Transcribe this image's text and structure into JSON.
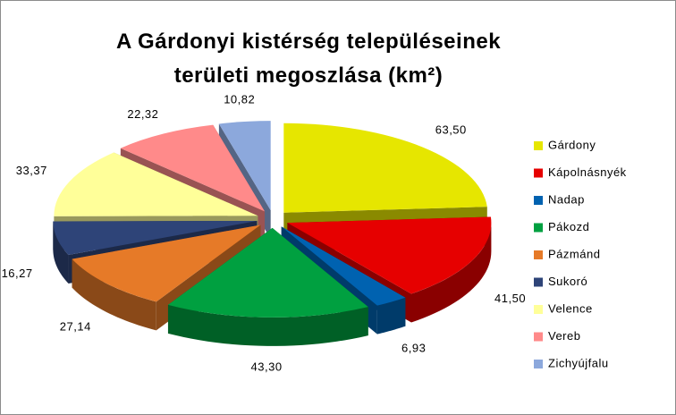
{
  "chart_data": {
    "type": "pie3d",
    "title": "A Gárdonyi kistérség településeinek területi megoszlása (km²)",
    "categories": [
      "Gárdony",
      "Kápolnásnyék",
      "Nadap",
      "Pákozd",
      "Pázmánd",
      "Sukoró",
      "Velence",
      "Vereb",
      "Zichyújfalu"
    ],
    "values": [
      63.5,
      41.5,
      6.93,
      43.3,
      27.14,
      16.27,
      33.37,
      22.32,
      10.82
    ],
    "value_labels": [
      "63,50",
      "41,50",
      "6,93",
      "43,30",
      "27,14",
      "16,27",
      "33,37",
      "22,32",
      "10,82"
    ],
    "colors": [
      "#e6e600",
      "#e60000",
      "#0062b0",
      "#00a040",
      "#e67a28",
      "#2e4478",
      "#ffff99",
      "#ff8a8a",
      "#8ca8dc"
    ],
    "legend": "right"
  }
}
